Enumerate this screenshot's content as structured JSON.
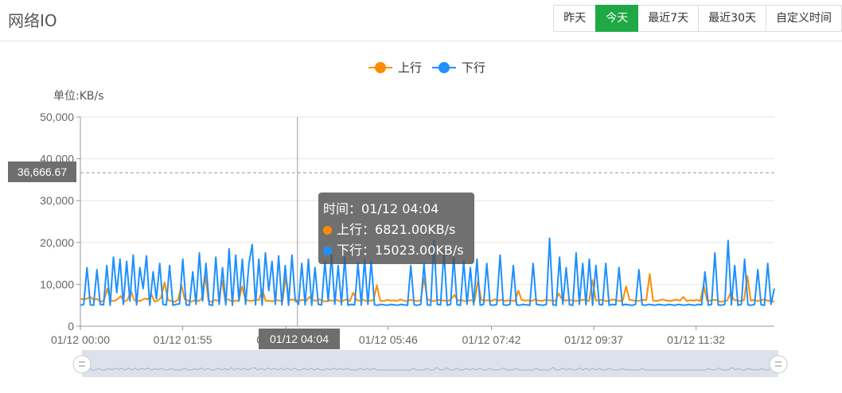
{
  "header": {
    "title": "网络IO",
    "ranges": [
      {
        "label": "昨天",
        "active": false
      },
      {
        "label": "今天",
        "active": true
      },
      {
        "label": "最近7天",
        "active": false
      },
      {
        "label": "最近30天",
        "active": false
      },
      {
        "label": "自定义时间",
        "active": false
      }
    ]
  },
  "chart_data": {
    "type": "line",
    "ylabel": "单位:KB/s",
    "ylim": [
      0,
      50000
    ],
    "y_ticks": [
      "0",
      "10,000",
      "20,000",
      "30,000",
      "40,000",
      "50,000"
    ],
    "x_ticks": [
      "01/12 00:00",
      "01/12 01:55",
      "01/12 03:51",
      "01/12 05:46",
      "01/12 07:42",
      "01/12 09:37",
      "01/12 11:32"
    ],
    "x_tick_minutes": [
      0,
      115,
      231,
      346,
      462,
      577,
      692
    ],
    "x_max_minutes": 780,
    "grid": true,
    "legend_position": "top-center",
    "series": [
      {
        "name": "上行",
        "color": "#ff8c00",
        "values": [
          6500,
          6400,
          6600,
          7000,
          6300,
          6500,
          5800,
          6200,
          9000,
          6100,
          6000,
          6400,
          7200,
          5900,
          6300,
          8500,
          6200,
          6000,
          6100,
          6600,
          6400,
          7800,
          5900,
          6100,
          6900,
          10500,
          6200,
          6000,
          5800,
          6300,
          9800,
          6400,
          6100,
          5900,
          6200,
          6000,
          6500,
          12500,
          6100,
          5800,
          6300,
          6000,
          11000,
          6200,
          6400,
          5900,
          6100,
          6000,
          9500,
          6300,
          6100,
          6000,
          6400,
          6200,
          8800,
          6000,
          6100,
          5900,
          6300,
          6100,
          6000,
          12000,
          6200,
          6400,
          5900,
          6100,
          6300,
          6000,
          7000,
          6200,
          6100,
          6400,
          6000,
          5900,
          6200,
          6100,
          6300,
          6000,
          6100,
          6400,
          6000,
          8000,
          6200,
          6100,
          6300,
          6000,
          6100,
          6200,
          9800,
          6100,
          6000,
          6300,
          6100,
          6200,
          6000,
          6400,
          6100,
          6000,
          6300,
          6100,
          6000,
          6200,
          11500,
          6400,
          6100,
          6000,
          6300,
          6200,
          6100,
          6000,
          6400,
          7500,
          6100,
          6300,
          6000,
          6100,
          6200,
          6000,
          10800,
          6300,
          6100,
          6200,
          6000,
          6400,
          6100,
          6300,
          6000,
          6200,
          6100,
          6000,
          8500,
          6300,
          6100,
          6200,
          6000,
          6400,
          6100,
          6000,
          6300,
          6200,
          6100,
          6000,
          7800,
          6400,
          6100,
          6300,
          6200,
          6000,
          6100,
          6300,
          6200,
          6000,
          11000,
          6100,
          6200,
          6300,
          6000,
          6100,
          6400,
          6200,
          6000,
          6100,
          9500,
          6300,
          6200,
          6000,
          6100,
          6300,
          6200,
          12500,
          6100,
          6000,
          6200,
          6400,
          6100,
          6000,
          6200,
          6300,
          6100,
          7000,
          6000,
          6200,
          6100,
          6300,
          6000,
          9800,
          6200,
          6100,
          6300,
          6200,
          5800,
          6000,
          6100,
          8000,
          6300,
          6100,
          6000,
          6200,
          12000,
          6100,
          6300,
          6000,
          6200,
          6400,
          6100,
          6000,
          5900
        ]
      },
      {
        "name": "下行",
        "color": "#1e90ff",
        "values": [
          5000,
          5200,
          14000,
          5100,
          5000,
          13500,
          5200,
          5100,
          14500,
          5000,
          16500,
          8000,
          16000,
          5200,
          15500,
          6000,
          17000,
          5100,
          14000,
          9000,
          16800,
          5000,
          13000,
          6500,
          15000,
          5200,
          5100,
          14500,
          5000,
          5200,
          5300,
          16000,
          5100,
          5000,
          13000,
          5200,
          17500,
          6000,
          15000,
          5100,
          5000,
          16500,
          5200,
          14000,
          5100,
          18500,
          5000,
          17000,
          6000,
          16000,
          5200,
          15000,
          19500,
          5100,
          16000,
          5000,
          17500,
          8500,
          15500,
          5200,
          16800,
          5100,
          14500,
          5000,
          17000,
          6500,
          5200,
          15000,
          5100,
          16000,
          5000,
          14000,
          5200,
          5100,
          15500,
          6000,
          17000,
          5200,
          14500,
          5100,
          16500,
          5000,
          5200,
          5100,
          15000,
          5000,
          16000,
          5200,
          15500,
          5100,
          5000,
          5200,
          5100,
          5000,
          5200,
          5100,
          5000,
          5200,
          5100,
          5000,
          14500,
          5100,
          5000,
          5200,
          15000,
          5100,
          5000,
          20500,
          5200,
          5100,
          18000,
          5000,
          5200,
          16500,
          5100,
          5000,
          15500,
          5200,
          14000,
          5100,
          16000,
          5000,
          5200,
          15000,
          5100,
          5000,
          5200,
          17000,
          5100,
          5000,
          5200,
          14500,
          5100,
          5000,
          5200,
          5100,
          5000,
          15000,
          5200,
          5100,
          5000,
          5200,
          21000,
          5100,
          5000,
          16500,
          5200,
          14000,
          5100,
          5000,
          17500,
          5200,
          15000,
          5100,
          16000,
          5000,
          14500,
          5200,
          5100,
          15000,
          5000,
          5200,
          5100,
          14000,
          5000,
          5200,
          5100,
          5000,
          5200,
          13500,
          5100,
          5000,
          5200,
          5100,
          5000,
          5200,
          5100,
          5000,
          5200,
          5100,
          5000,
          5200,
          5100,
          5000,
          5200,
          5100,
          5000,
          5200,
          5100,
          13000,
          5000,
          5200,
          17500,
          5100,
          5000,
          5200,
          20500,
          5100,
          14500,
          5000,
          5200,
          16000,
          5100,
          5000,
          5200,
          13500,
          5100,
          5000,
          15000,
          5200,
          9000
        ]
      }
    ],
    "axis_pointer": {
      "y_value": "36,666.67",
      "x_label": "01/12 04:04",
      "x_minutes": 244
    },
    "tooltip": {
      "time_label": "时间：",
      "time_value": "01/12 04:04",
      "rows": [
        {
          "name": "上行",
          "sep": "：",
          "value": "6821.00KB/s",
          "color": "#ff8c00"
        },
        {
          "name": "下行",
          "sep": "：",
          "value": "15023.00KB/s",
          "color": "#1e90ff"
        }
      ]
    }
  }
}
